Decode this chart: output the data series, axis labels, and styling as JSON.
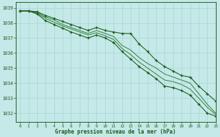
{
  "title": "Graphe pression niveau de la mer (hPa)",
  "bg_color": "#c5e8e8",
  "grid_color": "#a8d4d4",
  "line_color_dark": "#1a5c1a",
  "line_color_mid": "#2e7d32",
  "xlim": [
    -0.5,
    23
  ],
  "ylim": [
    1031.4,
    1039.4
  ],
  "yticks": [
    1032,
    1033,
    1034,
    1035,
    1036,
    1037,
    1038,
    1039
  ],
  "xticks": [
    0,
    1,
    2,
    3,
    4,
    5,
    6,
    7,
    8,
    9,
    10,
    11,
    12,
    13,
    14,
    15,
    16,
    17,
    18,
    19,
    20,
    21,
    22,
    23
  ],
  "series_high": [
    1038.8,
    1038.8,
    1038.75,
    1038.5,
    1038.3,
    1038.1,
    1037.9,
    1037.7,
    1037.5,
    1037.7,
    1037.5,
    1037.4,
    1037.3,
    1037.3,
    1036.6,
    1036.1,
    1035.5,
    1035.1,
    1034.8,
    1034.5,
    1034.4,
    1033.8,
    1033.3,
    1032.8
  ],
  "series_mid1": [
    1038.8,
    1038.8,
    1038.7,
    1038.4,
    1038.2,
    1037.9,
    1037.7,
    1037.5,
    1037.3,
    1037.5,
    1037.3,
    1037.1,
    1036.5,
    1036.2,
    1035.7,
    1035.3,
    1035.0,
    1034.6,
    1034.4,
    1034.2,
    1034.0,
    1033.3,
    1032.6,
    1032.0
  ],
  "series_mid2": [
    1038.8,
    1038.8,
    1038.65,
    1038.3,
    1038.05,
    1037.8,
    1037.6,
    1037.4,
    1037.2,
    1037.35,
    1037.15,
    1036.9,
    1036.3,
    1035.9,
    1035.4,
    1035.0,
    1034.6,
    1034.2,
    1034.1,
    1033.9,
    1033.6,
    1033.0,
    1032.4,
    1031.9
  ],
  "series_low": [
    1038.8,
    1038.8,
    1038.6,
    1038.15,
    1037.9,
    1037.65,
    1037.4,
    1037.2,
    1037.0,
    1037.2,
    1037.0,
    1036.7,
    1036.1,
    1035.6,
    1035.1,
    1034.7,
    1034.3,
    1033.8,
    1033.7,
    1033.5,
    1033.2,
    1032.6,
    1032.0,
    1031.8
  ]
}
